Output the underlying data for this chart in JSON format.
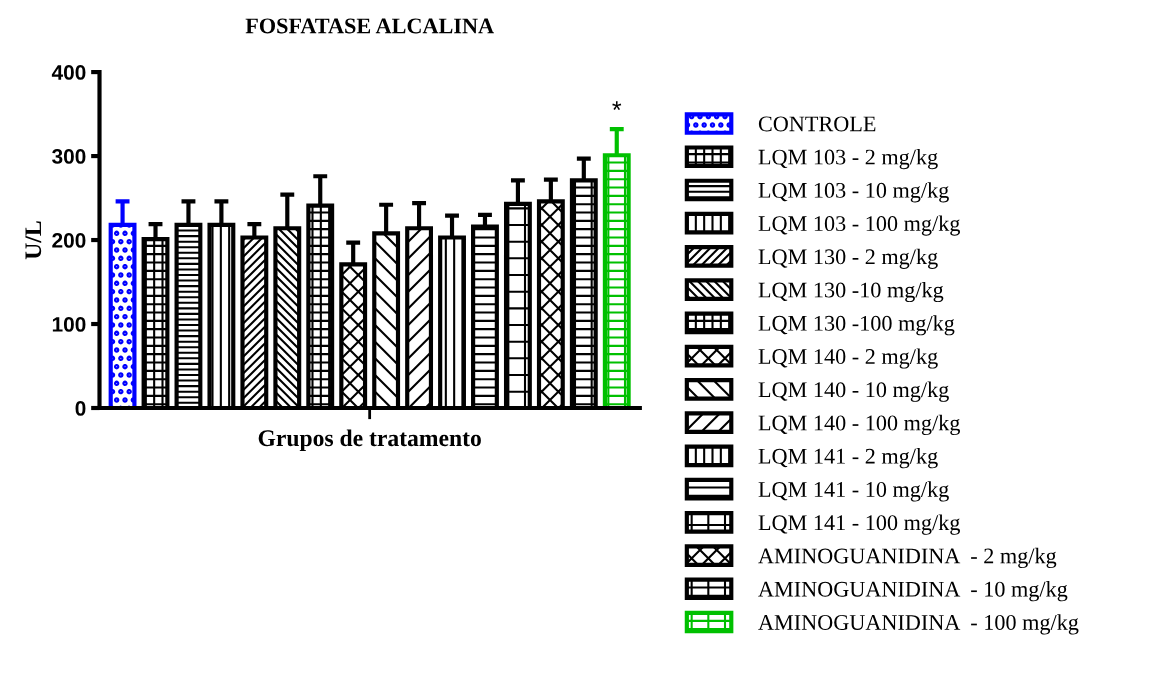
{
  "chart_data": {
    "type": "bar",
    "title": "FOSFATASE ALCALINA",
    "xlabel": "Grupos de tratamento",
    "ylabel": "U/L",
    "categories": [
      null
    ],
    "ylim": [
      0,
      400
    ],
    "yticks": [
      0,
      100,
      200,
      300,
      400
    ],
    "grid": false,
    "legend": "right",
    "annotations": [
      "*"
    ],
    "series": [
      {
        "name": "CONTROLE",
        "color": "#0000ff",
        "values": [
          218
        ],
        "errors": [
          28
        ]
      },
      {
        "name": "LQM 103 - 2 mg/kg",
        "color": "#000000",
        "values": [
          201
        ],
        "errors": [
          18
        ]
      },
      {
        "name": "LQM 103 - 10 mg/kg",
        "color": "#000000",
        "values": [
          218
        ],
        "errors": [
          28
        ]
      },
      {
        "name": "LQM 103 - 100 mg/kg",
        "color": "#000000",
        "values": [
          218
        ],
        "errors": [
          28
        ]
      },
      {
        "name": "LQM 130 - 2 mg/kg",
        "color": "#000000",
        "values": [
          203
        ],
        "errors": [
          16
        ]
      },
      {
        "name": "LQM 130 -10 mg/kg",
        "color": "#000000",
        "values": [
          214
        ],
        "errors": [
          40
        ]
      },
      {
        "name": "LQM 130 -100 mg/kg",
        "color": "#000000",
        "values": [
          241
        ],
        "errors": [
          35
        ]
      },
      {
        "name": "LQM 140 - 2 mg/kg",
        "color": "#000000",
        "values": [
          171
        ],
        "errors": [
          26
        ]
      },
      {
        "name": "LQM 140 - 10 mg/kg",
        "color": "#000000",
        "values": [
          208
        ],
        "errors": [
          34
        ]
      },
      {
        "name": "LQM 140 - 100 mg/kg",
        "color": "#000000",
        "values": [
          214
        ],
        "errors": [
          30
        ]
      },
      {
        "name": "LQM 141 - 2 mg/kg",
        "color": "#000000",
        "values": [
          203
        ],
        "errors": [
          26
        ]
      },
      {
        "name": "LQM 141 - 10 mg/kg",
        "color": "#000000",
        "values": [
          216
        ],
        "errors": [
          14
        ]
      },
      {
        "name": "LQM 141 - 100 mg/kg",
        "color": "#000000",
        "values": [
          243
        ],
        "errors": [
          28
        ]
      },
      {
        "name": "AMINOGUANIDINA  - 2 mg/kg",
        "color": "#000000",
        "values": [
          246
        ],
        "errors": [
          26
        ]
      },
      {
        "name": "AMINOGUANIDINA  - 10 mg/kg",
        "color": "#000000",
        "values": [
          271
        ],
        "errors": [
          26
        ]
      },
      {
        "name": "AMINOGUANIDINA  - 100 mg/kg",
        "color": "#00c000",
        "values": [
          301
        ],
        "errors": [
          31
        ]
      }
    ]
  }
}
